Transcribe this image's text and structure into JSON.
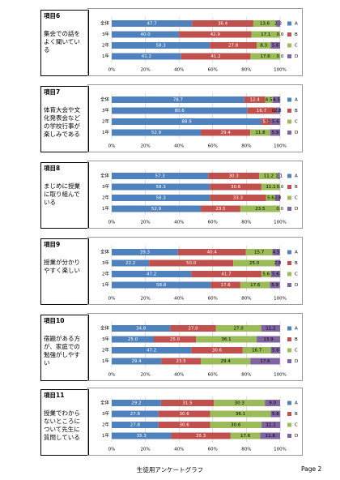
{
  "chart_data": [
    {
      "type": "bar",
      "orientation": "horizontal",
      "stacked": true,
      "title": "項目6",
      "subtitle": "集会での話をよく聞いている",
      "categories": [
        "全体",
        "3年",
        "2年",
        "1年"
      ],
      "series": [
        {
          "name": "A",
          "color": "#4f81bd",
          "values": [
            47.7,
            40,
            58.3,
            41.2
          ],
          "value_labels": [
            "47.7",
            "40.0",
            "58.3",
            "41.2"
          ]
        },
        {
          "name": "B",
          "color": "#c0504d",
          "values": [
            36.4,
            42.9,
            27.8,
            41.2
          ],
          "value_labels": [
            "36.4",
            "42.9",
            "27.8",
            "41.2"
          ]
        },
        {
          "name": "C",
          "color": "#9bbb59",
          "values": [
            13.6,
            17.1,
            8.3,
            17.6
          ],
          "value_labels": [
            "13.6",
            "17.1",
            "8.3",
            "17.6"
          ]
        },
        {
          "name": "D",
          "color": "#8064a2",
          "values": [
            2.3,
            0,
            5.6,
            0
          ],
          "value_labels": [
            "2.3",
            "0.0",
            "5.6",
            "0.0"
          ]
        }
      ],
      "xlim": [
        0,
        100
      ],
      "xticks": [
        {
          "value": 0,
          "label": "0%"
        },
        {
          "value": 20,
          "label": "20%"
        },
        {
          "value": 40,
          "label": "40%"
        },
        {
          "value": 60,
          "label": "60%"
        },
        {
          "value": 80,
          "label": "80%"
        },
        {
          "value": 100,
          "label": "100%"
        }
      ],
      "grid": true,
      "legend": "right"
    },
    {
      "type": "bar",
      "orientation": "horizontal",
      "stacked": true,
      "title": "項目7",
      "subtitle": "体育大会や文化発表会などの学校行事が楽しみである",
      "categories": [
        "全体",
        "3年",
        "2年",
        "1年"
      ],
      "series": [
        {
          "name": "A",
          "color": "#4f81bd",
          "values": [
            78.7,
            80.6,
            88.9,
            52.9
          ],
          "value_labels": [
            "78.7",
            "80.6",
            "88.9",
            "52.9"
          ]
        },
        {
          "name": "B",
          "color": "#c0504d",
          "values": [
            12.4,
            16.7,
            5.6,
            29.4
          ],
          "value_labels": [
            "12.4",
            "16.7",
            "5.6",
            "29.4"
          ]
        },
        {
          "name": "C",
          "color": "#9bbb59",
          "values": [
            4.5,
            0,
            0,
            11.8
          ],
          "value_labels": [
            "4.5",
            "0.0",
            "0.0",
            "11.8"
          ]
        },
        {
          "name": "D",
          "color": "#8064a2",
          "values": [
            4.5,
            2.8,
            5.6,
            5.9
          ],
          "value_labels": [
            "4.5",
            "2.8",
            "5.6",
            "5.9"
          ]
        }
      ],
      "xlim": [
        0,
        100
      ],
      "xticks": [
        {
          "value": 0,
          "label": "0%"
        },
        {
          "value": 20,
          "label": "20%"
        },
        {
          "value": 40,
          "label": "40%"
        },
        {
          "value": 60,
          "label": "60%"
        },
        {
          "value": 80,
          "label": "80%"
        },
        {
          "value": 100,
          "label": "100%"
        }
      ],
      "grid": true,
      "legend": "right"
    },
    {
      "type": "bar",
      "orientation": "horizontal",
      "stacked": true,
      "title": "項目8",
      "subtitle": "まじめに授業に取り組んでいる",
      "categories": [
        "全体",
        "3年",
        "2年",
        "1年"
      ],
      "series": [
        {
          "name": "A",
          "color": "#4f81bd",
          "values": [
            57.3,
            58.3,
            58.3,
            52.9
          ],
          "value_labels": [
            "57.3",
            "58.3",
            "58.3",
            "52.9"
          ]
        },
        {
          "name": "B",
          "color": "#c0504d",
          "values": [
            30.3,
            30.6,
            33.3,
            23.5
          ],
          "value_labels": [
            "30.3",
            "30.6",
            "33.3",
            "23.5"
          ]
        },
        {
          "name": "C",
          "color": "#9bbb59",
          "values": [
            11.2,
            11.1,
            5.6,
            23.5
          ],
          "value_labels": [
            "11.2",
            "11.1",
            "5.6",
            "23.5"
          ]
        },
        {
          "name": "D",
          "color": "#8064a2",
          "values": [
            1.1,
            0,
            2.8,
            0
          ],
          "value_labels": [
            "1.1",
            "0.0",
            "2.8",
            "0.0"
          ]
        }
      ],
      "xlim": [
        0,
        100
      ],
      "xticks": [
        {
          "value": 0,
          "label": "0%"
        },
        {
          "value": 20,
          "label": "20%"
        },
        {
          "value": 40,
          "label": "40%"
        },
        {
          "value": 60,
          "label": "60%"
        },
        {
          "value": 80,
          "label": "80%"
        },
        {
          "value": 100,
          "label": "100%"
        }
      ],
      "grid": true,
      "legend": "right"
    },
    {
      "type": "bar",
      "orientation": "horizontal",
      "stacked": true,
      "title": "項目9",
      "subtitle": "授業が分かりやすく楽しい",
      "categories": [
        "全体",
        "3年",
        "2年",
        "1年"
      ],
      "series": [
        {
          "name": "A",
          "color": "#4f81bd",
          "values": [
            39.3,
            22.2,
            47.2,
            58.8
          ],
          "value_labels": [
            "39.3",
            "22.2",
            "47.2",
            "58.8"
          ]
        },
        {
          "name": "B",
          "color": "#c0504d",
          "values": [
            40.4,
            50,
            41.7,
            17.6
          ],
          "value_labels": [
            "40.4",
            "50.0",
            "41.7",
            "17.6"
          ]
        },
        {
          "name": "C",
          "color": "#9bbb59",
          "values": [
            15.7,
            25,
            5.6,
            17.6
          ],
          "value_labels": [
            "15.7",
            "25.0",
            "5.6",
            "17.6"
          ]
        },
        {
          "name": "D",
          "color": "#8064a2",
          "values": [
            4.5,
            2.8,
            5.6,
            5.9
          ],
          "value_labels": [
            "4.5",
            "2.8",
            "5.6",
            "5.9"
          ]
        }
      ],
      "xlim": [
        0,
        100
      ],
      "xticks": [
        {
          "value": 0,
          "label": "0%"
        },
        {
          "value": 20,
          "label": "20%"
        },
        {
          "value": 40,
          "label": "40%"
        },
        {
          "value": 60,
          "label": "60%"
        },
        {
          "value": 80,
          "label": "80%"
        },
        {
          "value": 100,
          "label": "100%"
        }
      ],
      "grid": true,
      "legend": "right"
    },
    {
      "type": "bar",
      "orientation": "horizontal",
      "stacked": true,
      "title": "項目10",
      "subtitle": "宿題がある方が、家庭での勉強がしやすい",
      "categories": [
        "全体",
        "3年",
        "2年",
        "1年"
      ],
      "series": [
        {
          "name": "A",
          "color": "#4f81bd",
          "values": [
            34.8,
            25,
            47.2,
            29.4
          ],
          "value_labels": [
            "34.8",
            "25.0",
            "47.2",
            "29.4"
          ]
        },
        {
          "name": "B",
          "color": "#c0504d",
          "values": [
            27,
            25,
            30.6,
            23.5
          ],
          "value_labels": [
            "27.0",
            "25.0",
            "30.6",
            "23.5"
          ]
        },
        {
          "name": "C",
          "color": "#9bbb59",
          "values": [
            27,
            36.1,
            16.7,
            29.4
          ],
          "value_labels": [
            "27.0",
            "36.1",
            "16.7",
            "29.4"
          ]
        },
        {
          "name": "D",
          "color": "#8064a2",
          "values": [
            11.2,
            13.9,
            5.6,
            17.6
          ],
          "value_labels": [
            "11.2",
            "13.9",
            "5.6",
            "17.6"
          ]
        }
      ],
      "xlim": [
        0,
        100
      ],
      "xticks": [
        {
          "value": 0,
          "label": "0%"
        },
        {
          "value": 20,
          "label": "20%"
        },
        {
          "value": 40,
          "label": "40%"
        },
        {
          "value": 60,
          "label": "60%"
        },
        {
          "value": 80,
          "label": "80%"
        },
        {
          "value": 100,
          "label": "100%"
        }
      ],
      "grid": true,
      "legend": "right"
    },
    {
      "type": "bar",
      "orientation": "horizontal",
      "stacked": true,
      "title": "項目11",
      "subtitle": "授業でわからないところについて先生に質問している",
      "categories": [
        "全体",
        "3年",
        "2年",
        "1年"
      ],
      "series": [
        {
          "name": "A",
          "color": "#4f81bd",
          "values": [
            29.2,
            27.8,
            27.8,
            35.3
          ],
          "value_labels": [
            "29.2",
            "27.8",
            "27.8",
            "35.3"
          ]
        },
        {
          "name": "B",
          "color": "#c0504d",
          "values": [
            31.5,
            30.6,
            30.6,
            35.3
          ],
          "value_labels": [
            "31.5",
            "30.6",
            "30.6",
            "35.3"
          ]
        },
        {
          "name": "C",
          "color": "#9bbb59",
          "values": [
            30.3,
            36.1,
            30.6,
            17.6
          ],
          "value_labels": [
            "30.3",
            "36.1",
            "30.6",
            "17.6"
          ]
        },
        {
          "name": "D",
          "color": "#8064a2",
          "values": [
            9,
            5.6,
            11.1,
            11.8
          ],
          "value_labels": [
            "9.0",
            "5.6",
            "11.1",
            "11.8"
          ]
        }
      ],
      "xlim": [
        0,
        100
      ],
      "xticks": [
        {
          "value": 0,
          "label": "0%"
        },
        {
          "value": 20,
          "label": "20%"
        },
        {
          "value": 40,
          "label": "40%"
        },
        {
          "value": 60,
          "label": "60%"
        },
        {
          "value": 80,
          "label": "80%"
        },
        {
          "value": 100,
          "label": "100%"
        }
      ],
      "grid": true,
      "legend": "right"
    }
  ],
  "footer": {
    "text": "生徒用アンケートグラフ",
    "page": "Page 2"
  }
}
